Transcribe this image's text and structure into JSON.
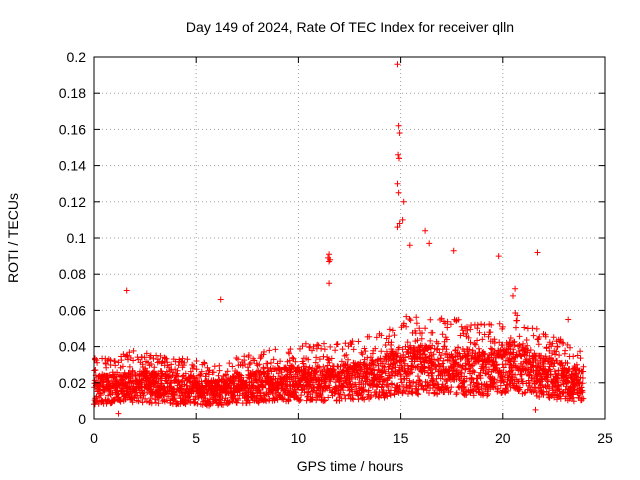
{
  "chart_data": {
    "type": "scatter",
    "title": "Day 149 of 2024, Rate Of TEC Index for receiver qlln",
    "xlabel": "GPS time / hours",
    "ylabel": "ROTI / TECUs",
    "xlim": [
      0,
      25
    ],
    "ylim": [
      0,
      0.2
    ],
    "xticks": [
      0,
      5,
      10,
      15,
      20,
      25
    ],
    "yticks": [
      0,
      0.02,
      0.04,
      0.06,
      0.08,
      0.1,
      0.12,
      0.14,
      0.16,
      0.18,
      0.2
    ],
    "x_tick_labels": [
      "0",
      "5",
      "10",
      "15",
      "20",
      "25"
    ],
    "y_tick_labels": [
      "0",
      "0.02",
      "0.04",
      "0.06",
      "0.08",
      "0.1",
      "0.12",
      "0.14",
      "0.16",
      "0.18",
      "0.2"
    ],
    "grid": true,
    "marker": "+",
    "marker_color": "#ff0000",
    "series": [
      {
        "name": "ROTI",
        "x_range": [
          0,
          23.95
        ],
        "time_step_hours": 0.01,
        "baseline_profile": [
          {
            "x": 0,
            "y": 0.018
          },
          {
            "x": 2,
            "y": 0.02
          },
          {
            "x": 4,
            "y": 0.018
          },
          {
            "x": 6,
            "y": 0.016
          },
          {
            "x": 8,
            "y": 0.02
          },
          {
            "x": 10,
            "y": 0.022
          },
          {
            "x": 12,
            "y": 0.022
          },
          {
            "x": 14,
            "y": 0.025
          },
          {
            "x": 15,
            "y": 0.03
          },
          {
            "x": 17,
            "y": 0.03
          },
          {
            "x": 19,
            "y": 0.028
          },
          {
            "x": 20.5,
            "y": 0.032
          },
          {
            "x": 22,
            "y": 0.026
          },
          {
            "x": 23.95,
            "y": 0.02
          }
        ],
        "notable_points": [
          {
            "x": 14.85,
            "y": 0.196
          },
          {
            "x": 14.9,
            "y": 0.162
          },
          {
            "x": 14.95,
            "y": 0.158
          },
          {
            "x": 14.88,
            "y": 0.146
          },
          {
            "x": 14.92,
            "y": 0.144
          },
          {
            "x": 14.85,
            "y": 0.13
          },
          {
            "x": 14.9,
            "y": 0.125
          },
          {
            "x": 15.15,
            "y": 0.12
          },
          {
            "x": 15.1,
            "y": 0.11
          },
          {
            "x": 14.95,
            "y": 0.108
          },
          {
            "x": 14.85,
            "y": 0.106
          },
          {
            "x": 16.2,
            "y": 0.104
          },
          {
            "x": 15.45,
            "y": 0.096
          },
          {
            "x": 16.4,
            "y": 0.097
          },
          {
            "x": 17.6,
            "y": 0.093
          },
          {
            "x": 21.7,
            "y": 0.092
          },
          {
            "x": 19.8,
            "y": 0.09
          },
          {
            "x": 11.5,
            "y": 0.091
          },
          {
            "x": 11.45,
            "y": 0.089
          },
          {
            "x": 11.55,
            "y": 0.088
          },
          {
            "x": 11.5,
            "y": 0.087
          },
          {
            "x": 11.5,
            "y": 0.075
          },
          {
            "x": 1.6,
            "y": 0.071
          },
          {
            "x": 6.2,
            "y": 0.066
          },
          {
            "x": 20.6,
            "y": 0.072
          },
          {
            "x": 20.5,
            "y": 0.068
          },
          {
            "x": 23.2,
            "y": 0.055
          },
          {
            "x": 1.2,
            "y": 0.003
          },
          {
            "x": 21.6,
            "y": 0.005
          }
        ]
      }
    ]
  }
}
